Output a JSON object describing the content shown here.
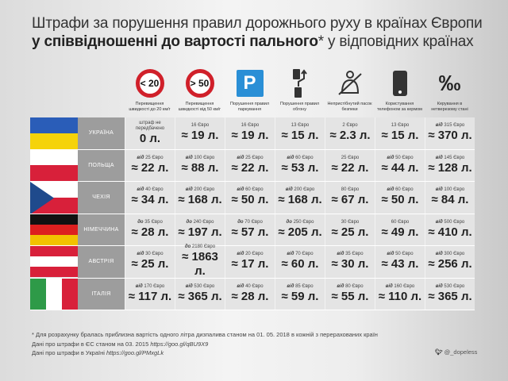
{
  "title": {
    "line1": "Штрафи за порушення правил дорожнього руху в країнах Європи",
    "line2_bold": "у співвідношенні до вартості пального",
    "line2_rest": "* у відповідних країнах"
  },
  "columns": [
    {
      "icon": "speed-limit-under-20-icon",
      "icon_text": "< 20",
      "label": "Перевищення швидкості до 20 км/г"
    },
    {
      "icon": "speed-limit-over-50-icon",
      "icon_text": "> 50",
      "label": "Перевищення швидкості від 50 км/г"
    },
    {
      "icon": "parking-icon",
      "icon_text": "P",
      "label": "Порушення правил паркування"
    },
    {
      "icon": "overtaking-icon",
      "icon_text": "",
      "label": "Порушення правил обгону"
    },
    {
      "icon": "seatbelt-icon",
      "icon_text": "",
      "label": "Непристібнутий пасок безпеки"
    },
    {
      "icon": "phone-icon",
      "icon_text": "",
      "label": "Користування телефоном за кермом"
    },
    {
      "icon": "permille-icon",
      "icon_text": "‰",
      "label": "Керування в нетверезому стані"
    }
  ],
  "flag_colors": {
    "ua_blue": "#2a5db8",
    "ua_yellow": "#f5d30a",
    "red": "#d8203a",
    "cz_blue": "#1f4a8c",
    "de_black": "#111111",
    "de_red": "#dd1f1f",
    "de_gold": "#f2c200",
    "it_green": "#2e9a48"
  },
  "rows": [
    {
      "flag": "ua",
      "country": "УКРАЇНА",
      "cells": [
        {
          "prefix": "",
          "fine": "штраф не передбачено",
          "liters": "0 л."
        },
        {
          "prefix": "",
          "fine": "16 Євро",
          "liters": "≈ 19 л."
        },
        {
          "prefix": "",
          "fine": "16 Євро",
          "liters": "≈ 19 л."
        },
        {
          "prefix": "",
          "fine": "13 Євро",
          "liters": "≈ 15 л."
        },
        {
          "prefix": "",
          "fine": "2 Євро",
          "liters": "≈ 2.3 л."
        },
        {
          "prefix": "",
          "fine": "13 Євро",
          "liters": "≈ 15 л."
        },
        {
          "prefix": "від",
          "fine": "315 Євро",
          "liters": "≈ 370 л."
        }
      ]
    },
    {
      "flag": "pl",
      "country": "ПОЛЬЩА",
      "cells": [
        {
          "prefix": "від",
          "fine": "25 Євро",
          "liters": "≈ 22 л."
        },
        {
          "prefix": "від",
          "fine": "100 Євро",
          "liters": "≈ 88 л."
        },
        {
          "prefix": "від",
          "fine": "25 Євро",
          "liters": "≈ 22 л."
        },
        {
          "prefix": "від",
          "fine": "60 Євро",
          "liters": "≈ 53 л."
        },
        {
          "prefix": "",
          "fine": "25 Євро",
          "liters": "≈ 22 л."
        },
        {
          "prefix": "від",
          "fine": "50 Євро",
          "liters": "≈ 44 л."
        },
        {
          "prefix": "від",
          "fine": "145 Євро",
          "liters": "≈ 128 л."
        }
      ]
    },
    {
      "flag": "cz",
      "country": "ЧЕХІЯ",
      "cells": [
        {
          "prefix": "від",
          "fine": "40 Євро",
          "liters": "≈ 34 л."
        },
        {
          "prefix": "від",
          "fine": "200 Євро",
          "liters": "≈ 168 л."
        },
        {
          "prefix": "від",
          "fine": "60 Євро",
          "liters": "≈ 50 л."
        },
        {
          "prefix": "від",
          "fine": "200 Євро",
          "liters": "≈ 168 л."
        },
        {
          "prefix": "",
          "fine": "80 Євро",
          "liters": "≈ 67 л."
        },
        {
          "prefix": "від",
          "fine": "60 Євро",
          "liters": "≈ 50 л."
        },
        {
          "prefix": "від",
          "fine": "100 Євро",
          "liters": "≈ 84 л."
        }
      ]
    },
    {
      "flag": "de",
      "country": "НІМЕЧЧИНА",
      "cells": [
        {
          "prefix": "до",
          "fine": "35 Євро",
          "liters": "≈ 28 л."
        },
        {
          "prefix": "до",
          "fine": "240 Євро",
          "liters": "≈ 197 л."
        },
        {
          "prefix": "до",
          "fine": "70 Євро",
          "liters": "≈ 57 л."
        },
        {
          "prefix": "до",
          "fine": "250 Євро",
          "liters": "≈ 205 л."
        },
        {
          "prefix": "",
          "fine": "30 Євро",
          "liters": "≈ 25 л."
        },
        {
          "prefix": "",
          "fine": "60 Євро",
          "liters": "≈ 49 л."
        },
        {
          "prefix": "від",
          "fine": "500 Євро",
          "liters": "≈ 410 л."
        }
      ]
    },
    {
      "flag": "at",
      "country": "АВСТРІЯ",
      "cells": [
        {
          "prefix": "від",
          "fine": "30 Євро",
          "liters": "≈ 25 л."
        },
        {
          "prefix": "до",
          "fine": "2180 Євро",
          "liters": "≈ 1863 л."
        },
        {
          "prefix": "від",
          "fine": "20 Євро",
          "liters": "≈ 17 л."
        },
        {
          "prefix": "від",
          "fine": "70 Євро",
          "liters": "≈ 60 л."
        },
        {
          "prefix": "від",
          "fine": "35 Євро",
          "liters": "≈ 30 л."
        },
        {
          "prefix": "від",
          "fine": "50 Євро",
          "liters": "≈ 43 л."
        },
        {
          "prefix": "від",
          "fine": "300 Євро",
          "liters": "≈ 256 л."
        }
      ]
    },
    {
      "flag": "it",
      "country": "ІТАЛІЯ",
      "cells": [
        {
          "prefix": "від",
          "fine": "170 Євро",
          "liters": "≈ 117 л."
        },
        {
          "prefix": "від",
          "fine": "530 Євро",
          "liters": "≈ 365 л."
        },
        {
          "prefix": "від",
          "fine": "40 Євро",
          "liters": "≈ 28 л."
        },
        {
          "prefix": "від",
          "fine": "85 Євро",
          "liters": "≈ 59 л."
        },
        {
          "prefix": "від",
          "fine": "80 Євро",
          "liters": "≈ 55 л."
        },
        {
          "prefix": "від",
          "fine": "160 Євро",
          "liters": "≈ 110 л."
        },
        {
          "prefix": "від",
          "fine": "530 Євро",
          "liters": "≈ 365 л."
        }
      ]
    }
  ],
  "footer": {
    "note": "* Для розрахунку бралась приблизна вартість одного літра дизпалива станом на 01. 05. 2018 в кожній з перерахованих країн",
    "eu_text": "Дані про штрафи в ЄС станом на 03. 2015 ",
    "eu_link": "https://goo.gl/qBU9X9",
    "ua_text": "Дані про штрафи в Україні ",
    "ua_link": "https://goo.gl/PMxgLk",
    "twitter_icon": "twitter-bird-icon",
    "twitter_handle": "@_dopeless"
  }
}
